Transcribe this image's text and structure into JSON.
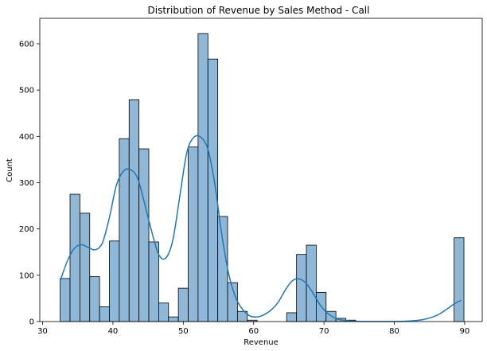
{
  "chart_data": {
    "type": "bar",
    "title": "Distribution of Revenue by Sales Method - Call",
    "xlabel": "Revenue",
    "ylabel": "Count",
    "xlim": [
      29.6,
      92.5
    ],
    "ylim": [
      0,
      655
    ],
    "xticks": [
      30,
      40,
      50,
      60,
      70,
      80,
      90
    ],
    "yticks": [
      0,
      100,
      200,
      300,
      400,
      500,
      600
    ],
    "grid": false,
    "legend": "none",
    "bin_edges": [
      32.5,
      33.9,
      35.3,
      36.7,
      38.1,
      39.5,
      40.9,
      42.3,
      43.7,
      45.1,
      46.5,
      47.9,
      49.3,
      50.7,
      52.1,
      53.5,
      54.9,
      56.3,
      57.7,
      59.1,
      60.5,
      61.9,
      63.3,
      64.7,
      66.1,
      67.5,
      68.9,
      70.3,
      71.7,
      73.1,
      74.5,
      75.9,
      77.3,
      78.7,
      80.1,
      81.5,
      82.9,
      84.3,
      85.7,
      87.1,
      88.5,
      89.9
    ],
    "counts": [
      93,
      275,
      234,
      97,
      32,
      174,
      395,
      479,
      373,
      172,
      40,
      10,
      72,
      377,
      622,
      567,
      227,
      84,
      22,
      3,
      0,
      0,
      0,
      19,
      145,
      165,
      63,
      22,
      7,
      3,
      0,
      0,
      0,
      0,
      0,
      0,
      0,
      0,
      0,
      0,
      181
    ],
    "kde": {
      "x": [
        32.5,
        33.5,
        34.5,
        35.5,
        36.5,
        37.5,
        38.5,
        39.5,
        40.5,
        41.5,
        42.5,
        43.5,
        44.5,
        45.5,
        46.5,
        47.5,
        48.5,
        49.5,
        50.5,
        51.5,
        52.5,
        53.5,
        54.5,
        55.5,
        56.5,
        57.5,
        58.5,
        59.5,
        60.5,
        61.5,
        62.5,
        63.5,
        64.5,
        65.5,
        66.5,
        67.5,
        68.5,
        69.5,
        70.5,
        72.0,
        74.0,
        76.0,
        78.0,
        80.0,
        82.0,
        84.0,
        86.0,
        87.5,
        88.5,
        89.5
      ],
      "y": [
        88,
        130,
        158,
        166,
        160,
        155,
        170,
        225,
        295,
        325,
        328,
        310,
        255,
        195,
        145,
        137,
        175,
        270,
        365,
        398,
        398,
        372,
        295,
        185,
        100,
        50,
        25,
        12,
        10,
        15,
        25,
        42,
        68,
        88,
        92,
        82,
        60,
        35,
        18,
        5,
        1,
        0,
        0,
        0,
        1,
        4,
        13,
        27,
        38,
        46
      ]
    },
    "colors": {
      "bar_fill": "#8fb8d8",
      "bar_edge": "#000000",
      "kde_line": "#1f77b4"
    }
  }
}
